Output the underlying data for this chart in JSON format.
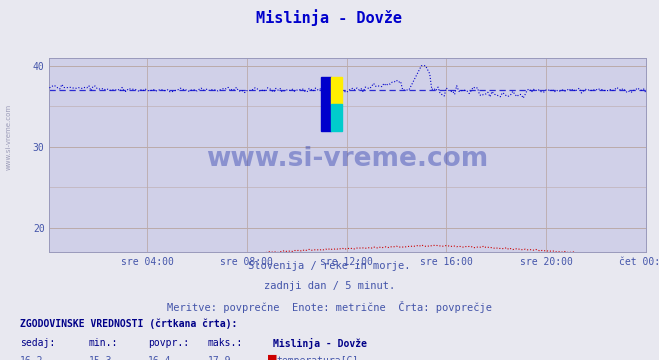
{
  "title": "Mislinja - Dovže",
  "subtitle1": "Slovenija / reke in morje.",
  "subtitle2": "zadnji dan / 5 minut.",
  "subtitle3": "Meritve: povprečne  Enote: metrične  Črta: povprečje",
  "xlabel_ticks": [
    "sre 04:00",
    "sre 08:00",
    "sre 12:00",
    "sre 16:00",
    "sre 20:00",
    "čet 00:00"
  ],
  "ylim": [
    17,
    41
  ],
  "yticks": [
    20,
    30,
    40
  ],
  "n_points": 288,
  "temp_avg": 16.4,
  "visina_avg": 37.0,
  "bg_color": "#e8e8f0",
  "plot_bg_color": "#d0d0e8",
  "grid_color": "#bbaaaa",
  "title_color": "#0000cc",
  "text_color": "#4455aa",
  "temp_color": "#cc0000",
  "visina_color": "#0000cc",
  "pretok_color": "#008800",
  "watermark_color": "#3344aa",
  "table_header_color": "#000088",
  "table_data_color": "#4455aa"
}
